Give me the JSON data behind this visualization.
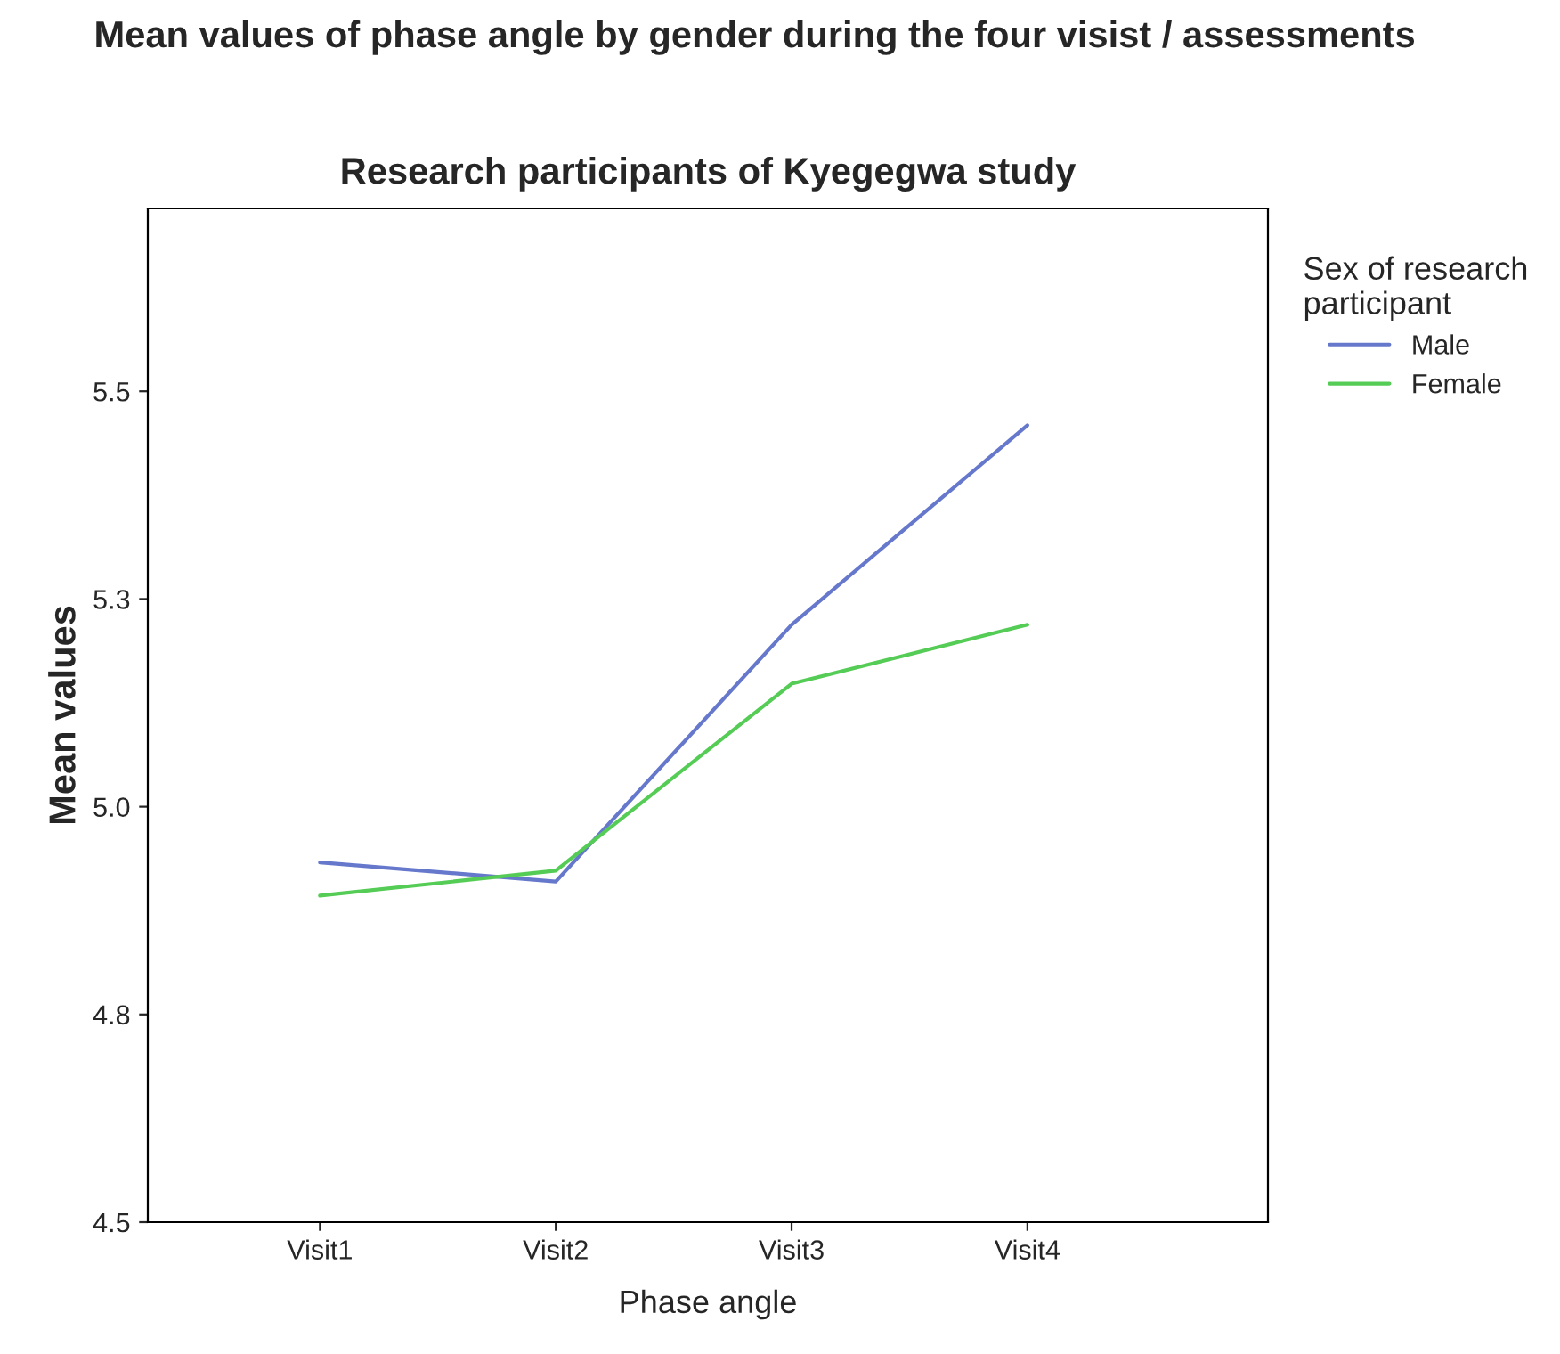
{
  "chart_data": {
    "type": "line",
    "title": "Mean values of phase angle by gender during the four visist / assessments",
    "subtitle": "Research participants of Kyegegwa study",
    "xlabel": "Phase angle",
    "ylabel": "Mean values",
    "legend_title": "Sex of research\nparticipant",
    "categories": [
      "Visit1",
      "Visit2",
      "Visit3",
      "Visit4"
    ],
    "series": [
      {
        "name": "Male",
        "color": "#6678cc",
        "values": [
          4.933,
          4.91,
          5.219,
          5.459
        ]
      },
      {
        "name": "Female",
        "color": "#55cc55",
        "values": [
          4.893,
          4.923,
          5.148,
          5.219
        ]
      }
    ],
    "ylim": [
      4.5,
      5.72
    ],
    "yticks": [
      {
        "value": 4.5,
        "label": "4.5"
      },
      {
        "value": 4.75,
        "label": "4.8"
      },
      {
        "value": 5.0,
        "label": "5.0"
      },
      {
        "value": 5.25,
        "label": "5.3"
      },
      {
        "value": 5.5,
        "label": "5.5"
      }
    ],
    "grid": false,
    "legend": "top right",
    "marker": "none",
    "line_style": "solid"
  }
}
